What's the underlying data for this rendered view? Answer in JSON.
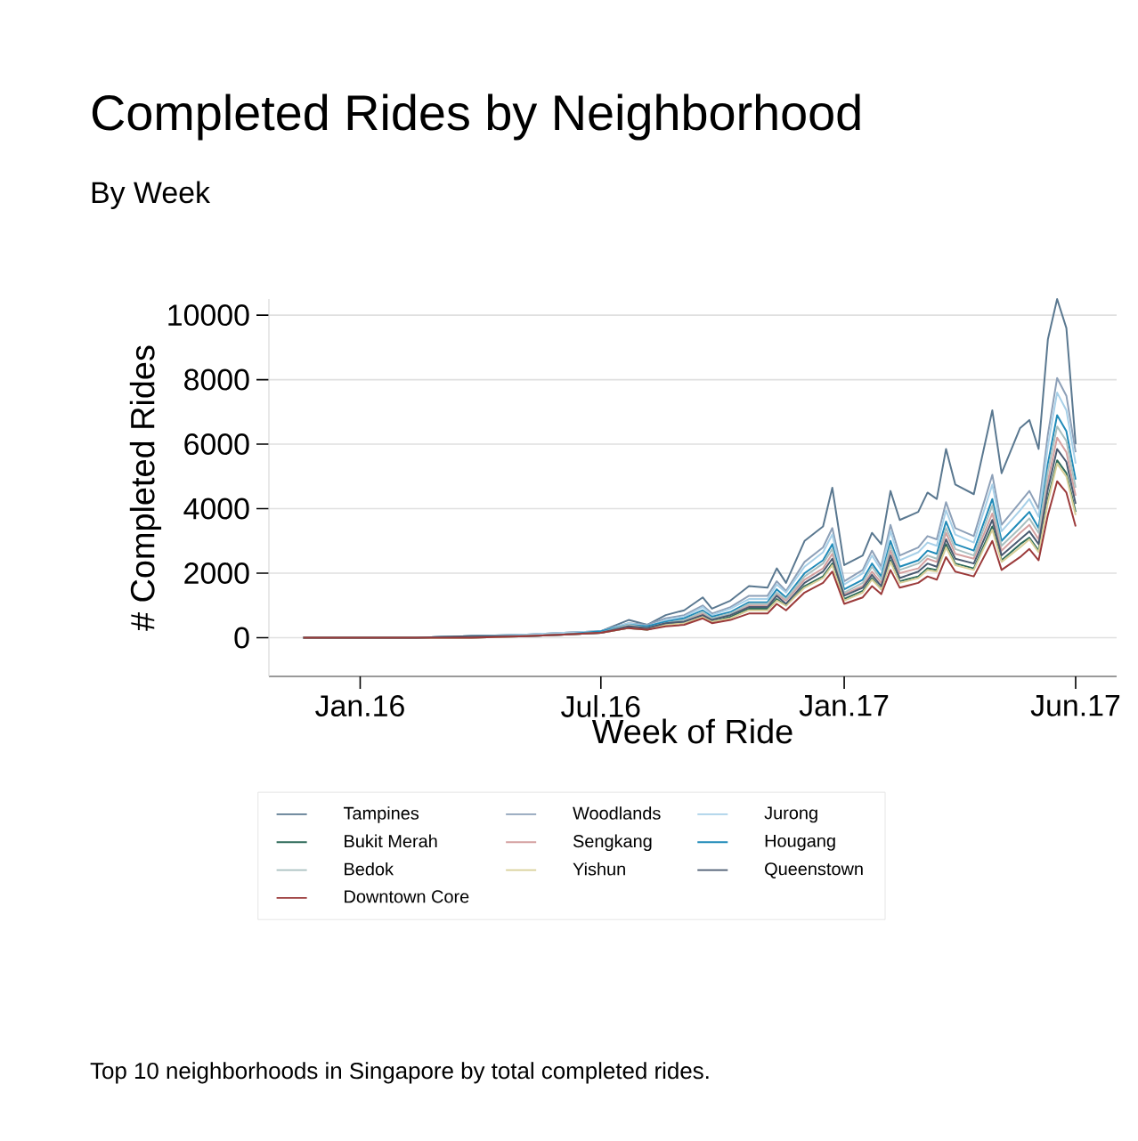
{
  "chart_data": {
    "type": "line",
    "title": "Completed Rides by Neighborhood",
    "subtitle": "By Week",
    "xlabel": "Week of Ride",
    "ylabel": "# Completed Rides",
    "annotations": [
      "Top 10 neighborhoods in Singapore by total completed rides."
    ],
    "x": [
      "2015-11-19",
      "2016-01-01",
      "2016-02-12",
      "2016-03-25",
      "2016-05-06",
      "2016-06-03",
      "2016-07-01",
      "2016-07-22",
      "2016-08-05",
      "2016-08-19",
      "2016-09-02",
      "2016-09-16",
      "2016-09-23",
      "2016-10-07",
      "2016-10-21",
      "2016-11-04",
      "2016-11-11",
      "2016-11-18",
      "2016-12-02",
      "2016-12-16",
      "2016-12-23",
      "2017-01-01",
      "2017-01-15",
      "2017-01-22",
      "2017-01-29",
      "2017-02-05",
      "2017-02-12",
      "2017-02-26",
      "2017-03-05",
      "2017-03-12",
      "2017-03-19",
      "2017-03-26",
      "2017-04-09",
      "2017-04-23",
      "2017-04-30",
      "2017-05-14",
      "2017-05-21",
      "2017-05-28",
      "2017-06-04",
      "2017-06-11",
      "2017-06-18",
      "2017-06-25"
    ],
    "xlim": [
      "2015-10-24",
      "2017-07-26"
    ],
    "ylim": [
      -1200,
      10500
    ],
    "xticks": [
      {
        "value": "2016-01-01",
        "label": "Jan.16"
      },
      {
        "value": "2016-07-01",
        "label": "Jul.16"
      },
      {
        "value": "2017-01-01",
        "label": "Jan.17"
      },
      {
        "value": "2017-06-25",
        "label": "Jun.17"
      }
    ],
    "yticks": [
      0,
      2000,
      4000,
      6000,
      8000,
      10000
    ],
    "grid": "y",
    "legend": "bottom",
    "series": [
      {
        "name": "Tampines",
        "color": "#5a7890",
        "values": [
          0,
          0,
          0,
          50,
          100,
          150,
          200,
          550,
          400,
          700,
          850,
          1250,
          900,
          1150,
          1600,
          1550,
          2150,
          1700,
          3000,
          3450,
          4650,
          2250,
          2550,
          3250,
          2900,
          4550,
          3650,
          3900,
          4500,
          4300,
          5850,
          4750,
          4450,
          7050,
          5100,
          6500,
          6750,
          5850,
          9250,
          10500,
          9600,
          6000
        ]
      },
      {
        "name": "Woodlands",
        "color": "#8da0b8",
        "values": [
          0,
          0,
          0,
          50,
          100,
          150,
          200,
          450,
          400,
          600,
          700,
          1000,
          750,
          950,
          1300,
          1300,
          1750,
          1450,
          2350,
          2800,
          3400,
          1750,
          2100,
          2700,
          2200,
          3500,
          2550,
          2800,
          3150,
          3050,
          4200,
          3400,
          3150,
          5050,
          3500,
          4200,
          4550,
          4000,
          6300,
          8050,
          7500,
          5750
        ]
      },
      {
        "name": "Jurong",
        "color": "#a8d0e8",
        "values": [
          0,
          0,
          0,
          50,
          100,
          150,
          200,
          450,
          350,
          550,
          650,
          950,
          700,
          900,
          1200,
          1200,
          1650,
          1400,
          2200,
          2650,
          3200,
          1650,
          2000,
          2550,
          2100,
          3300,
          2400,
          2650,
          2950,
          2850,
          3950,
          3200,
          2950,
          4750,
          3300,
          3950,
          4300,
          3750,
          5950,
          7600,
          7050,
          5400
        ]
      },
      {
        "name": "Bukit Merah",
        "color": "#2e6b5a",
        "values": [
          0,
          0,
          0,
          0,
          50,
          100,
          150,
          300,
          250,
          400,
          500,
          700,
          500,
          650,
          900,
          900,
          1200,
          1000,
          1600,
          1900,
          2300,
          1200,
          1450,
          1850,
          1500,
          2400,
          1750,
          1900,
          2150,
          2100,
          2900,
          2300,
          2150,
          3450,
          2400,
          2900,
          3100,
          2700,
          4300,
          5500,
          5100,
          3900
        ]
      },
      {
        "name": "Sengkang",
        "color": "#d4a0a0",
        "values": [
          0,
          0,
          0,
          0,
          50,
          100,
          150,
          350,
          300,
          450,
          550,
          750,
          600,
          700,
          1000,
          1000,
          1350,
          1150,
          1800,
          2150,
          2600,
          1350,
          1600,
          2050,
          1700,
          2700,
          2000,
          2150,
          2450,
          2350,
          3250,
          2600,
          2450,
          3850,
          2700,
          3250,
          3500,
          3050,
          4850,
          6200,
          5750,
          4400
        ]
      },
      {
        "name": "Hougang",
        "color": "#1f8ab8",
        "values": [
          0,
          0,
          0,
          50,
          50,
          100,
          200,
          400,
          350,
          500,
          600,
          850,
          650,
          800,
          1100,
          1100,
          1500,
          1250,
          2000,
          2400,
          2900,
          1500,
          1800,
          2300,
          1900,
          3000,
          2200,
          2400,
          2700,
          2600,
          3600,
          2900,
          2700,
          4300,
          3000,
          3600,
          3900,
          3400,
          5400,
          6900,
          6400,
          4900
        ]
      },
      {
        "name": "Bedok",
        "color": "#a9c0c0",
        "values": [
          0,
          0,
          0,
          50,
          50,
          100,
          150,
          400,
          300,
          450,
          550,
          800,
          600,
          750,
          1050,
          1050,
          1400,
          1200,
          1900,
          2300,
          2750,
          1400,
          1700,
          2200,
          1800,
          2850,
          2100,
          2300,
          2550,
          2450,
          3400,
          2750,
          2550,
          4100,
          2850,
          3400,
          3700,
          3250,
          5150,
          6550,
          6100,
          4650
        ]
      },
      {
        "name": "Yishun",
        "color": "#d8cf98",
        "values": [
          0,
          0,
          0,
          0,
          50,
          100,
          150,
          300,
          250,
          400,
          450,
          650,
          500,
          600,
          850,
          850,
          1150,
          1000,
          1550,
          1850,
          2250,
          1150,
          1400,
          1800,
          1500,
          2350,
          1700,
          1850,
          2100,
          2050,
          2800,
          2250,
          2100,
          3350,
          2350,
          2800,
          3050,
          2650,
          4200,
          5400,
          5000,
          3800
        ]
      },
      {
        "name": "Queenstown",
        "color": "#4a5a70",
        "values": [
          0,
          0,
          0,
          50,
          50,
          100,
          150,
          350,
          300,
          450,
          500,
          700,
          550,
          700,
          950,
          950,
          1300,
          1050,
          1700,
          2050,
          2450,
          1300,
          1550,
          1950,
          1600,
          2550,
          1850,
          2050,
          2300,
          2200,
          3050,
          2450,
          2300,
          3650,
          2550,
          3050,
          3300,
          2900,
          4600,
          5850,
          5450,
          4150
        ]
      },
      {
        "name": "Downtown Core",
        "color": "#9b3a3a",
        "values": [
          0,
          0,
          0,
          0,
          50,
          100,
          150,
          300,
          250,
          350,
          400,
          600,
          450,
          550,
          750,
          750,
          1050,
          850,
          1400,
          1700,
          2050,
          1050,
          1250,
          1600,
          1350,
          2100,
          1550,
          1700,
          1900,
          1800,
          2500,
          2050,
          1900,
          3000,
          2100,
          2500,
          2750,
          2400,
          3800,
          4850,
          4500,
          3450
        ]
      }
    ]
  }
}
